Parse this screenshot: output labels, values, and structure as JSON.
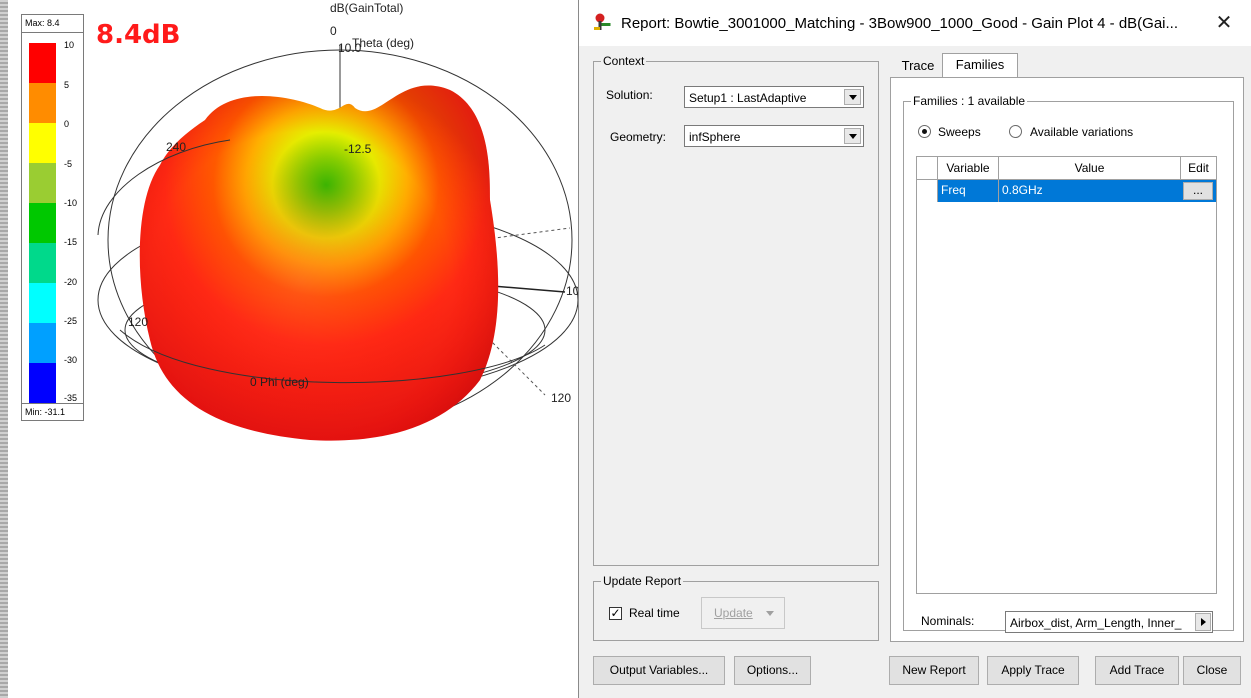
{
  "plot": {
    "big_label": "8.4dB",
    "top_title": "dB(GainTotal)",
    "theta_zero": "0",
    "theta_label": "Theta (deg)",
    "ring_top": "10.0",
    "ring_inner": "-12.5",
    "label_240": "240",
    "label_120_left": "120",
    "label_120_right": "120",
    "label_right_edge": "10",
    "phi_label": "0 Phi (deg)",
    "legend": {
      "max": "Max: 8.4",
      "min": "Min: -31.1",
      "ticks": [
        "10",
        "5",
        "0",
        "-5",
        "-10",
        "-15",
        "-20",
        "-25",
        "-30",
        "-35"
      ],
      "colors": [
        "#ff0000",
        "#ff8c00",
        "#ffff00",
        "#9acd32",
        "#00c800",
        "#00d98b",
        "#00ffff",
        "#00a0ff",
        "#0050ff",
        "#0000ff"
      ]
    }
  },
  "dialog": {
    "title": "Report: Bowtie_3001000_Matching - 3Bow900_1000_Good - Gain Plot 4 - dB(Gai...",
    "context": {
      "group_label": "Context",
      "solution_label": "Solution:",
      "solution_value": "Setup1 : LastAdaptive",
      "geometry_label": "Geometry:",
      "geometry_value": "infSphere"
    },
    "update_report": {
      "group_label": "Update Report",
      "realtime_label": "Real time",
      "update_label": "Update"
    },
    "tabs": [
      {
        "label": "Trace"
      },
      {
        "label": "Families"
      }
    ],
    "families": {
      "group_label": "Families : 1 available",
      "sweeps_label": "Sweeps",
      "variations_label": "Available variations",
      "columns": [
        "Variable",
        "Value",
        "Edit"
      ],
      "rows": [
        {
          "variable": "Freq",
          "value": "0.8GHz",
          "edit": "..."
        }
      ],
      "nominals_label": "Nominals:",
      "nominals_value": "Airbox_dist, Arm_Length, Inner_"
    },
    "buttons": {
      "output_variables": "Output Variables...",
      "options": "Options...",
      "new_report": "New Report",
      "apply_trace": "Apply Trace",
      "add_trace": "Add Trace",
      "close": "Close"
    },
    "close_glyph": "✕"
  }
}
